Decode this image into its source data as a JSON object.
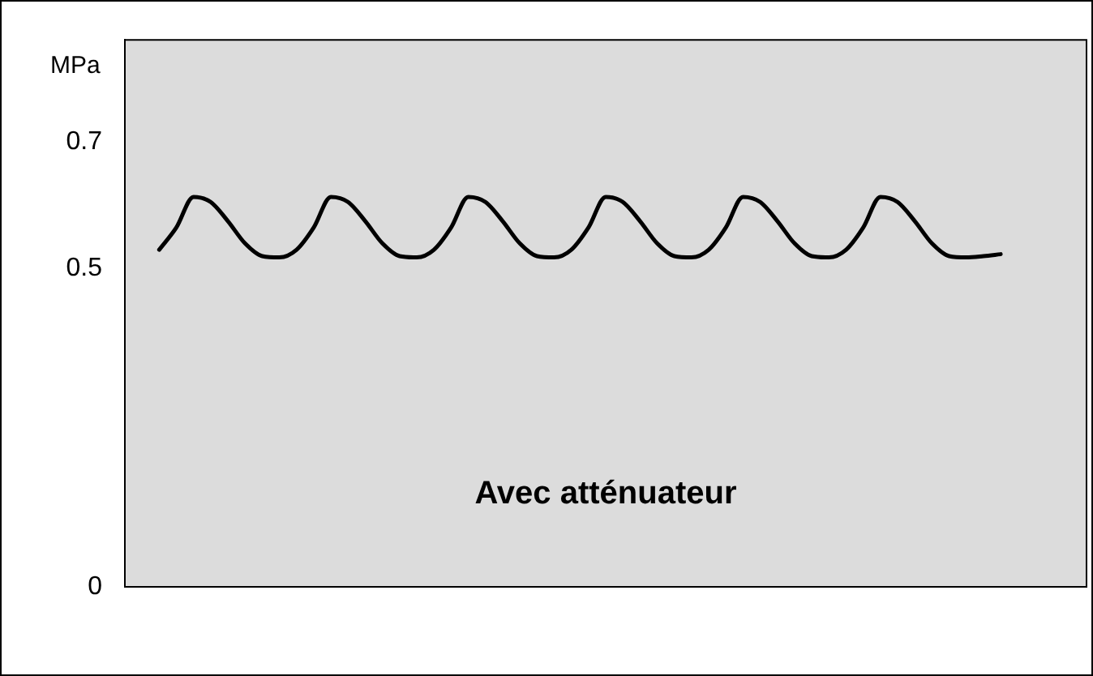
{
  "chart_data": {
    "type": "line",
    "ylabel": "MPa",
    "annotations": [
      "Avec atténuateur"
    ],
    "categories": [
      null,
      null,
      null,
      null,
      null,
      null,
      null,
      null,
      null,
      null,
      null,
      null,
      null,
      null,
      null,
      null,
      null,
      null,
      null,
      null,
      null,
      null,
      null,
      null,
      null,
      null,
      null,
      null,
      null,
      null,
      null,
      null,
      null,
      null,
      null,
      null,
      null,
      null,
      null,
      null,
      null,
      null,
      null,
      null,
      null,
      null,
      null,
      null,
      null,
      null,
      null,
      null,
      null,
      null,
      null,
      null,
      null
    ],
    "series": [
      {
        "color": "#000000",
        "values": [
          null,
          null,
          0.53,
          0.565,
          0.613,
          0.605,
          0.575,
          0.54,
          0.52,
          0.518,
          0.53,
          0.565,
          0.613,
          0.605,
          0.575,
          0.54,
          0.52,
          0.518,
          0.53,
          0.565,
          0.613,
          0.605,
          0.575,
          0.54,
          0.52,
          0.518,
          0.53,
          0.565,
          0.613,
          0.605,
          0.575,
          0.54,
          0.52,
          0.518,
          0.53,
          0.565,
          0.613,
          0.605,
          0.575,
          0.54,
          0.52,
          0.518,
          0.53,
          0.565,
          0.613,
          0.605,
          0.575,
          0.54,
          0.52,
          0.518,
          0.52,
          0.523,
          null,
          null,
          null,
          null,
          null
        ]
      }
    ],
    "ylim": [
      0,
      0.86
    ],
    "yticks": [
      0,
      0.5,
      0.7
    ],
    "tick_labels": "y",
    "grid": false,
    "legend": false,
    "marker": "none",
    "line_style": "solid"
  }
}
